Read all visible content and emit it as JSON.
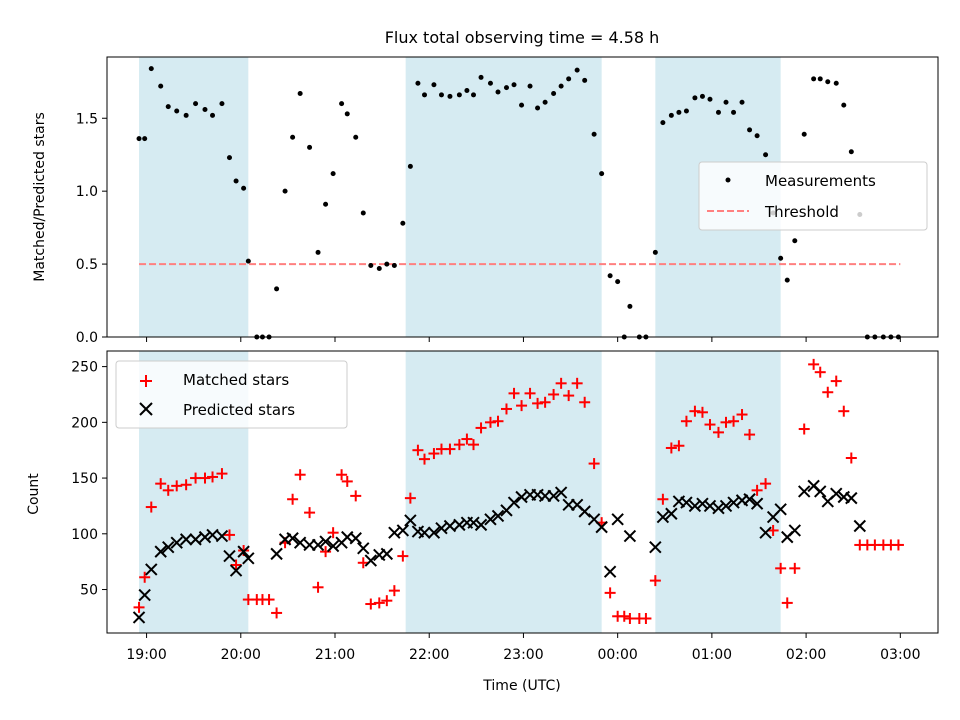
{
  "title": "Flux total observing time = 4.58 h",
  "xlabel": "Time (UTC)",
  "x_ticks": [
    "19:00",
    "20:00",
    "21:00",
    "22:00",
    "23:00",
    "00:00",
    "01:00",
    "02:00",
    "03:00"
  ],
  "colors": {
    "shade": "#add8e6",
    "measurements": "#000000",
    "threshold": "#ff8080",
    "matched": "#ff0000",
    "predicted": "#000000"
  },
  "chart_data": [
    {
      "type": "scatter",
      "panel": "top",
      "title": "Flux total observing time = 4.58 h",
      "ylabel": "Matched/Predicted stars",
      "y_ticks": [
        "0.0",
        "0.5",
        "1.0",
        "1.5"
      ],
      "xlim_hours": [
        18.58,
        27.4
      ],
      "ylim": [
        0,
        1.92
      ],
      "legend": "center-right",
      "legend_entries": {
        "measurements": "Measurements",
        "threshold": "Threshold"
      },
      "shaded_intervals_hours": [
        [
          18.92,
          20.08
        ],
        [
          21.75,
          23.83
        ],
        [
          24.4,
          25.73
        ]
      ],
      "threshold": {
        "value": 0.5,
        "x_range_hours": [
          18.92,
          27.0
        ]
      },
      "series": [
        {
          "name": "Measurements",
          "x_hours": [
            18.92,
            18.98,
            19.05,
            19.15,
            19.23,
            19.32,
            19.42,
            19.52,
            19.62,
            19.7,
            19.8,
            19.88,
            19.95,
            20.03,
            20.08,
            20.17,
            20.23,
            20.3,
            20.38,
            20.47,
            20.55,
            20.63,
            20.73,
            20.82,
            20.9,
            20.98,
            21.07,
            21.13,
            21.22,
            21.3,
            21.38,
            21.47,
            21.55,
            21.63,
            21.72,
            21.8,
            21.88,
            21.95,
            22.05,
            22.13,
            22.22,
            22.32,
            22.4,
            22.47,
            22.55,
            22.65,
            22.73,
            22.82,
            22.9,
            22.98,
            23.07,
            23.15,
            23.23,
            23.32,
            23.4,
            23.48,
            23.57,
            23.65,
            23.75,
            23.83,
            23.92,
            24.0,
            24.07,
            24.13,
            24.23,
            24.3,
            24.4,
            24.48,
            24.57,
            24.65,
            24.73,
            24.82,
            24.9,
            24.98,
            25.07,
            25.15,
            25.23,
            25.32,
            25.4,
            25.48,
            25.57,
            25.65,
            25.73,
            25.8,
            25.88,
            25.98,
            26.08,
            26.15,
            26.23,
            26.32,
            26.4,
            26.48,
            26.57,
            26.65,
            26.73,
            26.82,
            26.9,
            26.98
          ],
          "values": [
            1.36,
            1.36,
            1.84,
            1.72,
            1.58,
            1.55,
            1.52,
            1.6,
            1.56,
            1.52,
            1.6,
            1.23,
            1.07,
            1.02,
            0.52,
            0.0,
            0.0,
            0.0,
            0.33,
            1.0,
            1.37,
            1.67,
            1.3,
            0.58,
            0.91,
            1.12,
            1.6,
            1.53,
            1.37,
            0.85,
            0.49,
            0.47,
            0.5,
            0.49,
            0.78,
            1.17,
            1.74,
            1.66,
            1.73,
            1.66,
            1.65,
            1.66,
            1.69,
            1.66,
            1.78,
            1.74,
            1.68,
            1.71,
            1.73,
            1.59,
            1.72,
            1.57,
            1.61,
            1.67,
            1.72,
            1.77,
            1.83,
            1.76,
            1.39,
            1.12,
            0.42,
            0.38,
            0.0,
            0.21,
            0.0,
            0.0,
            0.58,
            1.47,
            1.52,
            1.54,
            1.55,
            1.64,
            1.65,
            1.63,
            1.54,
            1.61,
            1.54,
            1.61,
            1.42,
            1.38,
            1.25,
            0.85,
            0.54,
            0.39,
            0.66,
            1.39,
            1.77,
            1.77,
            1.75,
            1.74,
            1.59,
            1.27,
            0.84,
            0.0,
            0.0,
            0.0,
            0.0,
            0.0
          ]
        }
      ]
    },
    {
      "type": "scatter",
      "panel": "bottom",
      "xlabel": "Time (UTC)",
      "ylabel": "Count",
      "y_ticks": [
        "50",
        "100",
        "150",
        "200",
        "250"
      ],
      "xlim_hours": [
        18.58,
        27.4
      ],
      "ylim": [
        11,
        264
      ],
      "legend": "upper-left",
      "legend_entries": {
        "matched": "Matched stars",
        "predicted": "Predicted stars"
      },
      "shaded_intervals_hours": [
        [
          18.92,
          20.08
        ],
        [
          21.75,
          23.83
        ],
        [
          24.4,
          25.73
        ]
      ],
      "series": [
        {
          "name": "Matched stars",
          "marker": "plus",
          "x_hours": [
            18.92,
            18.98,
            19.05,
            19.15,
            19.23,
            19.32,
            19.42,
            19.52,
            19.62,
            19.7,
            19.8,
            19.88,
            19.95,
            20.03,
            20.08,
            20.17,
            20.23,
            20.3,
            20.38,
            20.47,
            20.55,
            20.63,
            20.73,
            20.82,
            20.9,
            20.98,
            21.07,
            21.13,
            21.22,
            21.3,
            21.38,
            21.47,
            21.55,
            21.63,
            21.72,
            21.8,
            21.88,
            21.95,
            22.05,
            22.13,
            22.22,
            22.32,
            22.4,
            22.47,
            22.55,
            22.65,
            22.73,
            22.82,
            22.9,
            22.98,
            23.07,
            23.15,
            23.23,
            23.32,
            23.4,
            23.48,
            23.57,
            23.65,
            23.75,
            23.83,
            23.92,
            24.0,
            24.07,
            24.13,
            24.23,
            24.3,
            24.4,
            24.48,
            24.57,
            24.65,
            24.73,
            24.82,
            24.9,
            24.98,
            25.07,
            25.15,
            25.23,
            25.32,
            25.4,
            25.48,
            25.57,
            25.65,
            25.73,
            25.8,
            25.88,
            25.98,
            26.08,
            26.15,
            26.23,
            26.32,
            26.4,
            26.48,
            26.57,
            26.65,
            26.73,
            26.82,
            26.9,
            26.98
          ],
          "values": [
            34,
            61,
            124,
            145,
            139,
            143,
            144,
            150,
            150,
            151,
            154,
            99,
            72,
            85,
            41,
            41,
            41,
            41,
            29,
            92,
            131,
            153,
            119,
            52,
            84,
            101,
            153,
            147,
            134,
            74,
            37,
            38,
            40,
            49,
            80,
            132,
            175,
            167,
            172,
            176,
            176,
            180,
            185,
            180,
            195,
            200,
            201,
            212,
            226,
            215,
            226,
            217,
            218,
            225,
            235,
            224,
            235,
            218,
            163,
            110,
            47,
            26,
            26,
            24,
            24,
            24,
            58,
            131,
            177,
            179,
            201,
            210,
            209,
            198,
            191,
            200,
            201,
            207,
            189,
            139,
            145,
            103,
            69,
            38,
            69,
            194,
            252,
            245,
            227,
            237,
            210,
            168,
            90,
            90,
            90,
            90,
            90,
            90
          ]
        },
        {
          "name": "Predicted stars",
          "marker": "x",
          "x_hours": [
            18.92,
            18.98,
            19.05,
            19.15,
            19.23,
            19.32,
            19.42,
            19.52,
            19.62,
            19.7,
            19.8,
            19.88,
            19.95,
            20.03,
            20.08,
            20.38,
            20.47,
            20.55,
            20.63,
            20.73,
            20.82,
            20.9,
            20.98,
            21.07,
            21.13,
            21.22,
            21.3,
            21.38,
            21.47,
            21.55,
            21.63,
            21.72,
            21.8,
            21.88,
            21.95,
            22.05,
            22.13,
            22.22,
            22.32,
            22.4,
            22.47,
            22.55,
            22.65,
            22.73,
            22.82,
            22.9,
            22.98,
            23.07,
            23.15,
            23.23,
            23.32,
            23.4,
            23.48,
            23.57,
            23.65,
            23.75,
            23.83,
            23.92,
            24.0,
            24.13,
            24.4,
            24.48,
            24.57,
            24.65,
            24.73,
            24.82,
            24.9,
            24.98,
            25.07,
            25.15,
            25.23,
            25.32,
            25.4,
            25.48,
            25.57,
            25.65,
            25.73,
            25.8,
            25.88,
            25.98,
            26.08,
            26.15,
            26.23,
            26.32,
            26.4,
            26.48,
            26.57
          ],
          "values": [
            25,
            45,
            68,
            84,
            88,
            92,
            95,
            95,
            97,
            99,
            98,
            80,
            67,
            84,
            78,
            82,
            95,
            96,
            92,
            90,
            90,
            93,
            89,
            92,
            97,
            96,
            87,
            76,
            81,
            82,
            101,
            103,
            112,
            102,
            101,
            101,
            105,
            107,
            108,
            110,
            110,
            108,
            113,
            116,
            121,
            128,
            133,
            135,
            135,
            134,
            134,
            137,
            126,
            126,
            120,
            113,
            106,
            66,
            113,
            98,
            88,
            115,
            118,
            129,
            128,
            125,
            127,
            125,
            123,
            125,
            128,
            130,
            131,
            127,
            101,
            115,
            122,
            97,
            103,
            138,
            143,
            138,
            129,
            136,
            133,
            132,
            107
          ]
        }
      ]
    }
  ]
}
